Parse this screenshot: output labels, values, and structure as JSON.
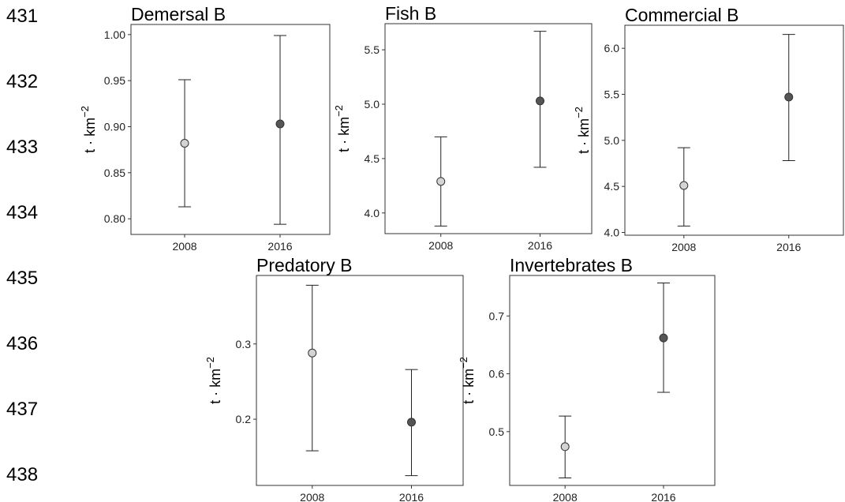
{
  "line_numbers": [
    "431",
    "432",
    "433",
    "434",
    "435",
    "436",
    "437",
    "438"
  ],
  "colors": {
    "marker_2008": "#d4d4d4",
    "marker_2016": "#555555",
    "marker_stroke": "#333333",
    "error_bar": "#222222",
    "panel_border": "#333333"
  },
  "chart_data": [
    {
      "type": "scatter",
      "title": "Demersal B",
      "ylabel": "t · km",
      "ylabel_sup": "−2",
      "categories": [
        "2008",
        "2016"
      ],
      "values": [
        0.882,
        0.903
      ],
      "error_low": [
        0.813,
        0.794
      ],
      "error_high": [
        0.951,
        0.999
      ],
      "ylim": [
        0.783,
        1.011
      ],
      "yticks": [
        "1.00",
        "0.95",
        "0.90",
        "0.85",
        "0.80"
      ],
      "grid": false
    },
    {
      "type": "scatter",
      "title": "Fish B",
      "ylabel": "t · km",
      "ylabel_sup": "−2",
      "categories": [
        "2008",
        "2016"
      ],
      "values": [
        4.29,
        5.03
      ],
      "error_low": [
        3.88,
        4.42
      ],
      "error_high": [
        4.7,
        5.67
      ],
      "ylim": [
        3.81,
        5.74
      ],
      "yticks": [
        "5.5",
        "5.0",
        "4.5",
        "4.0"
      ],
      "grid": false
    },
    {
      "type": "scatter",
      "title": "Commercial B",
      "ylabel": "t · km",
      "ylabel_sup": "−2",
      "categories": [
        "2008",
        "2016"
      ],
      "values": [
        4.51,
        5.47
      ],
      "error_low": [
        4.07,
        4.78
      ],
      "error_high": [
        4.92,
        6.15
      ],
      "ylim": [
        3.97,
        6.25
      ],
      "yticks": [
        "6.0",
        "5.5",
        "5.0",
        "4.5",
        "4.0"
      ],
      "grid": false
    },
    {
      "type": "scatter",
      "title": "Predatory B",
      "ylabel": "t · km",
      "ylabel_sup": "−2",
      "categories": [
        "2008",
        "2016"
      ],
      "values": [
        0.288,
        0.196
      ],
      "error_low": [
        0.158,
        0.125
      ],
      "error_high": [
        0.378,
        0.266
      ],
      "ylim": [
        0.112,
        0.391
      ],
      "yticks": [
        "0.3",
        "0.2"
      ],
      "grid": false
    },
    {
      "type": "scatter",
      "title": "Invertebrates B",
      "ylabel": "t · km",
      "ylabel_sup": "−2",
      "categories": [
        "2008",
        "2016"
      ],
      "values": [
        0.474,
        0.662
      ],
      "error_low": [
        0.42,
        0.568
      ],
      "error_high": [
        0.527,
        0.757
      ],
      "ylim": [
        0.407,
        0.77
      ],
      "yticks": [
        "0.7",
        "0.6",
        "0.5"
      ],
      "grid": false
    }
  ]
}
